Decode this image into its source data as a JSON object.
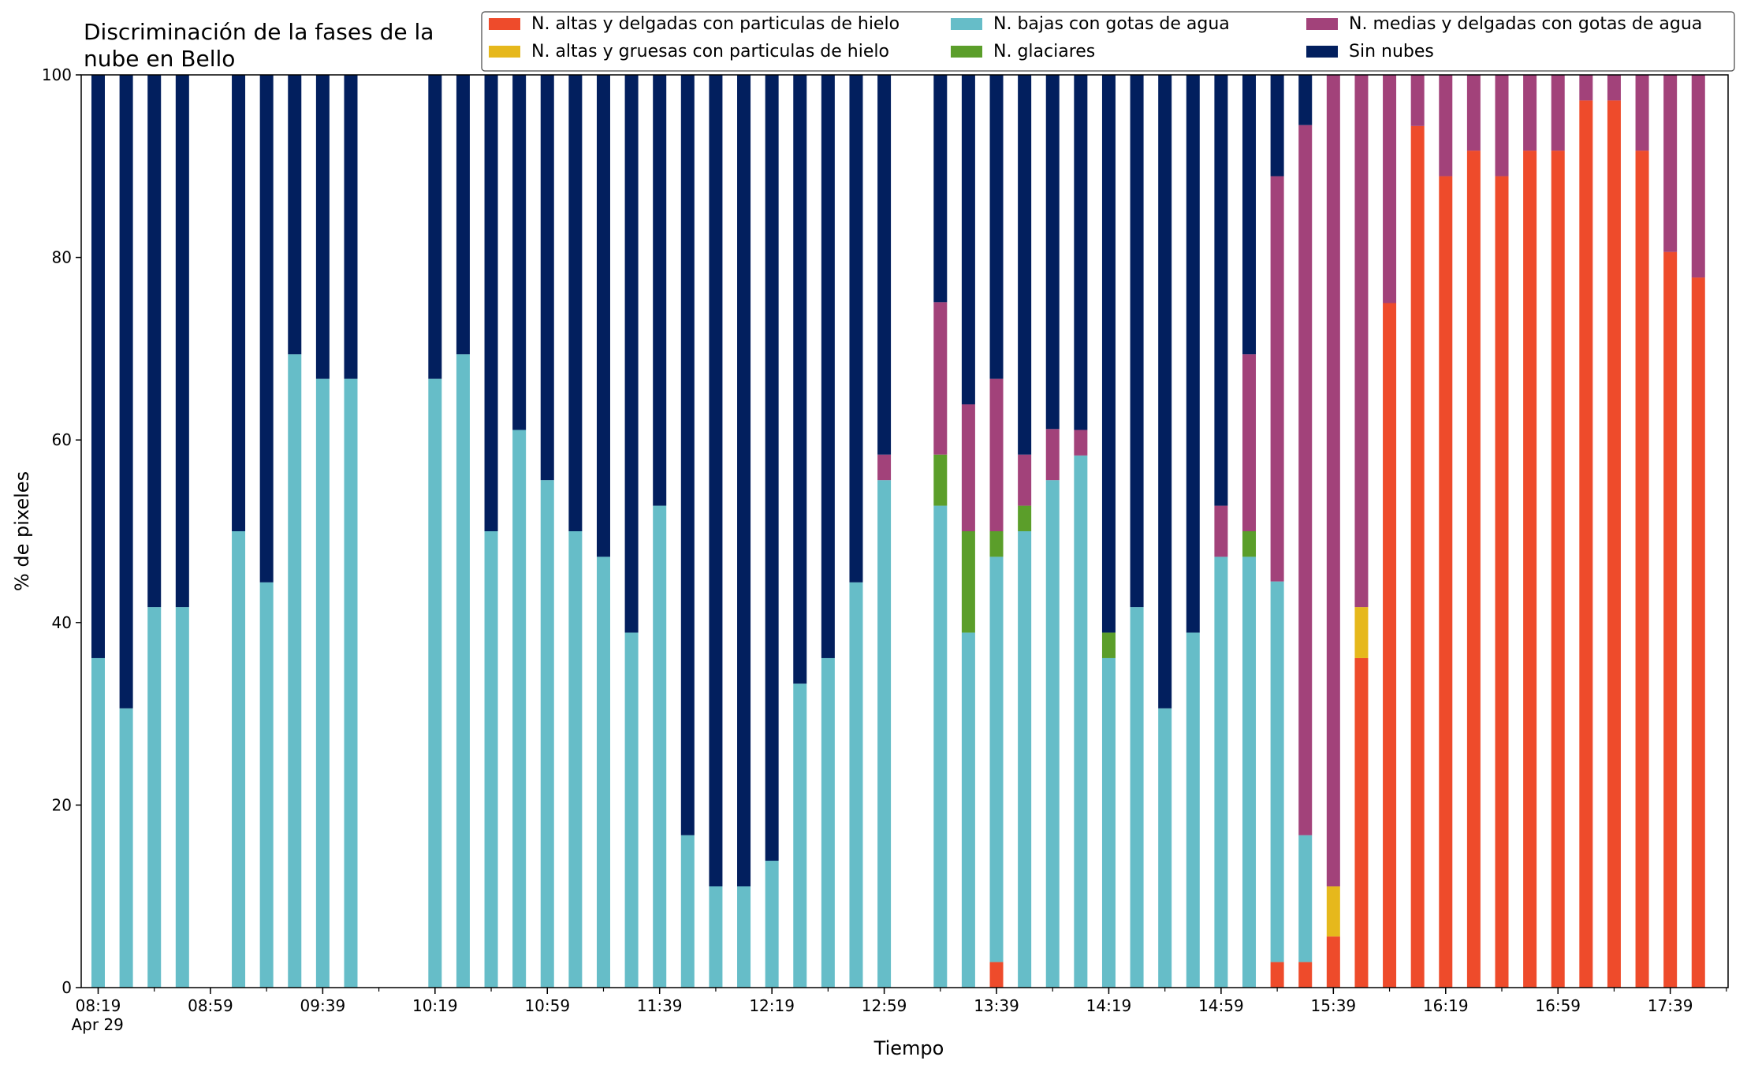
{
  "chart_data": {
    "type": "bar",
    "stacked": true,
    "title_line1": "Discriminación de la fases de la",
    "title_line2": "nube en Bello",
    "xlabel": "Tiempo",
    "ylabel": "% de pixeles",
    "ylim": [
      0,
      100
    ],
    "yticks": [
      "0",
      "20",
      "40",
      "60",
      "80",
      "100"
    ],
    "xticks": [
      {
        "label": "08:19",
        "sub": "Apr 29",
        "slot": 0
      },
      {
        "label": "08:59",
        "slot": 4
      },
      {
        "label": "09:39",
        "slot": 8
      },
      {
        "label": "10:19",
        "slot": 12
      },
      {
        "label": "10:59",
        "slot": 16
      },
      {
        "label": "11:39",
        "slot": 20
      },
      {
        "label": "12:19",
        "slot": 24
      },
      {
        "label": "12:59",
        "slot": 28
      },
      {
        "label": "13:39",
        "slot": 32
      },
      {
        "label": "14:19",
        "slot": 36
      },
      {
        "label": "14:59",
        "slot": 40
      },
      {
        "label": "15:39",
        "slot": 44
      },
      {
        "label": "16:19",
        "slot": 48
      },
      {
        "label": "16:59",
        "slot": 52
      },
      {
        "label": "17:39",
        "slot": 56
      }
    ],
    "grid": false,
    "legend_position": "top",
    "slot_minutes": 10,
    "num_slots": 59,
    "colors": {
      "altas_delgadas_hielo": "#ee4b2b",
      "altas_gruesas_hielo": "#e6b81c",
      "bajas_agua": "#66bdc8",
      "glaciares": "#5b9e2a",
      "medias_delgadas_agua": "#a2427a",
      "sin_nubes": "#021f5e"
    },
    "series": [
      {
        "key": "altas_delgadas_hielo",
        "name": "N. altas y delgadas con particulas de hielo"
      },
      {
        "key": "altas_gruesas_hielo",
        "name": "N. altas y gruesas con particulas de hielo"
      },
      {
        "key": "bajas_agua",
        "name": "N. bajas con gotas de agua"
      },
      {
        "key": "glaciares",
        "name": "N. glaciares"
      },
      {
        "key": "medias_delgadas_agua",
        "name": "N. medias y delgadas con gotas de agua"
      },
      {
        "key": "sin_nubes",
        "name": "Sin nubes"
      }
    ],
    "bars": [
      {
        "slot": 0,
        "values": [
          0,
          0,
          36.1,
          0,
          0,
          63.9
        ]
      },
      {
        "slot": 1,
        "values": [
          0,
          0,
          30.6,
          0,
          0,
          69.4
        ]
      },
      {
        "slot": 2,
        "values": [
          0,
          0,
          41.7,
          0,
          0,
          58.3
        ]
      },
      {
        "slot": 3,
        "values": [
          0,
          0,
          41.7,
          0,
          0,
          58.3
        ]
      },
      {
        "slot": 5,
        "values": [
          0,
          0,
          50.0,
          0,
          0,
          50.0
        ]
      },
      {
        "slot": 6,
        "values": [
          0,
          0,
          44.4,
          0,
          0,
          55.6
        ]
      },
      {
        "slot": 7,
        "values": [
          0,
          0,
          69.4,
          0,
          0,
          30.6
        ]
      },
      {
        "slot": 8,
        "values": [
          0,
          0,
          66.7,
          0,
          0,
          33.3
        ]
      },
      {
        "slot": 9,
        "values": [
          0,
          0,
          66.7,
          0,
          0,
          33.3
        ]
      },
      {
        "slot": 12,
        "values": [
          0,
          0,
          66.7,
          0,
          0,
          33.3
        ]
      },
      {
        "slot": 13,
        "values": [
          0,
          0,
          69.4,
          0,
          0,
          30.6
        ]
      },
      {
        "slot": 14,
        "values": [
          0,
          0,
          50.0,
          0,
          0,
          50.0
        ]
      },
      {
        "slot": 15,
        "values": [
          0,
          0,
          61.1,
          0,
          0,
          38.9
        ]
      },
      {
        "slot": 16,
        "values": [
          0,
          0,
          55.6,
          0,
          0,
          44.4
        ]
      },
      {
        "slot": 17,
        "values": [
          0,
          0,
          50.0,
          0,
          0,
          50.0
        ]
      },
      {
        "slot": 18,
        "values": [
          0,
          0,
          47.2,
          0,
          0,
          52.8
        ]
      },
      {
        "slot": 19,
        "values": [
          0,
          0,
          38.9,
          0,
          0,
          61.1
        ]
      },
      {
        "slot": 20,
        "values": [
          0,
          0,
          52.8,
          0,
          0,
          47.2
        ]
      },
      {
        "slot": 21,
        "values": [
          0,
          0,
          16.7,
          0,
          0,
          83.3
        ]
      },
      {
        "slot": 22,
        "values": [
          0,
          0,
          11.1,
          0,
          0,
          88.9
        ]
      },
      {
        "slot": 23,
        "values": [
          0,
          0,
          11.1,
          0,
          0,
          88.9
        ]
      },
      {
        "slot": 24,
        "values": [
          0,
          0,
          13.9,
          0,
          0,
          86.1
        ]
      },
      {
        "slot": 25,
        "values": [
          0,
          0,
          33.3,
          0,
          0,
          66.7
        ]
      },
      {
        "slot": 26,
        "values": [
          0,
          0,
          36.1,
          0,
          0,
          63.9
        ]
      },
      {
        "slot": 27,
        "values": [
          0,
          0,
          44.4,
          0,
          0,
          55.6
        ]
      },
      {
        "slot": 28,
        "values": [
          0,
          0,
          55.6,
          0,
          2.8,
          41.6
        ]
      },
      {
        "slot": 30,
        "values": [
          0,
          0,
          52.8,
          5.6,
          16.7,
          24.9
        ]
      },
      {
        "slot": 31,
        "values": [
          0,
          0,
          38.9,
          11.1,
          13.9,
          36.1
        ]
      },
      {
        "slot": 32,
        "values": [
          2.8,
          0,
          44.4,
          2.8,
          16.7,
          33.3
        ]
      },
      {
        "slot": 33,
        "values": [
          0,
          0,
          50.0,
          2.8,
          5.6,
          41.6
        ]
      },
      {
        "slot": 34,
        "values": [
          0,
          0,
          55.6,
          0,
          5.6,
          38.8
        ]
      },
      {
        "slot": 35,
        "values": [
          0,
          0,
          58.3,
          0,
          2.8,
          38.9
        ]
      },
      {
        "slot": 36,
        "values": [
          0,
          0,
          36.1,
          2.8,
          0,
          61.1
        ]
      },
      {
        "slot": 37,
        "values": [
          0,
          0,
          41.7,
          0,
          0,
          58.3
        ]
      },
      {
        "slot": 38,
        "values": [
          0,
          0,
          30.6,
          0,
          0,
          69.4
        ]
      },
      {
        "slot": 39,
        "values": [
          0,
          0,
          38.9,
          0,
          0,
          61.1
        ]
      },
      {
        "slot": 40,
        "values": [
          0,
          0,
          47.2,
          0,
          5.6,
          47.2
        ]
      },
      {
        "slot": 41,
        "values": [
          0,
          0,
          47.2,
          2.8,
          19.4,
          30.6
        ]
      },
      {
        "slot": 42,
        "values": [
          2.8,
          0,
          41.7,
          0,
          44.4,
          11.1
        ]
      },
      {
        "slot": 43,
        "values": [
          2.8,
          0,
          13.9,
          0,
          77.8,
          5.5
        ]
      },
      {
        "slot": 44,
        "values": [
          5.6,
          5.5,
          0,
          0,
          88.9,
          0
        ]
      },
      {
        "slot": 45,
        "values": [
          36.1,
          5.6,
          0,
          0,
          58.3,
          0
        ]
      },
      {
        "slot": 46,
        "values": [
          75.0,
          0,
          0,
          0,
          25.0,
          0
        ]
      },
      {
        "slot": 47,
        "values": [
          94.4,
          0,
          0,
          0,
          5.6,
          0
        ]
      },
      {
        "slot": 48,
        "values": [
          88.9,
          0,
          0,
          0,
          11.1,
          0
        ]
      },
      {
        "slot": 49,
        "values": [
          91.7,
          0,
          0,
          0,
          8.3,
          0
        ]
      },
      {
        "slot": 50,
        "values": [
          88.9,
          0,
          0,
          0,
          11.1,
          0
        ]
      },
      {
        "slot": 51,
        "values": [
          91.7,
          0,
          0,
          0,
          8.3,
          0
        ]
      },
      {
        "slot": 52,
        "values": [
          91.7,
          0,
          0,
          0,
          8.3,
          0
        ]
      },
      {
        "slot": 53,
        "values": [
          97.2,
          0,
          0,
          0,
          2.8,
          0
        ]
      },
      {
        "slot": 54,
        "values": [
          97.2,
          0,
          0,
          0,
          2.8,
          0
        ]
      },
      {
        "slot": 55,
        "values": [
          91.7,
          0,
          0,
          0,
          8.3,
          0
        ]
      },
      {
        "slot": 56,
        "values": [
          80.6,
          0,
          0,
          0,
          19.4,
          0
        ]
      },
      {
        "slot": 57,
        "values": [
          77.8,
          0,
          0,
          0,
          22.2,
          0
        ]
      }
    ]
  }
}
